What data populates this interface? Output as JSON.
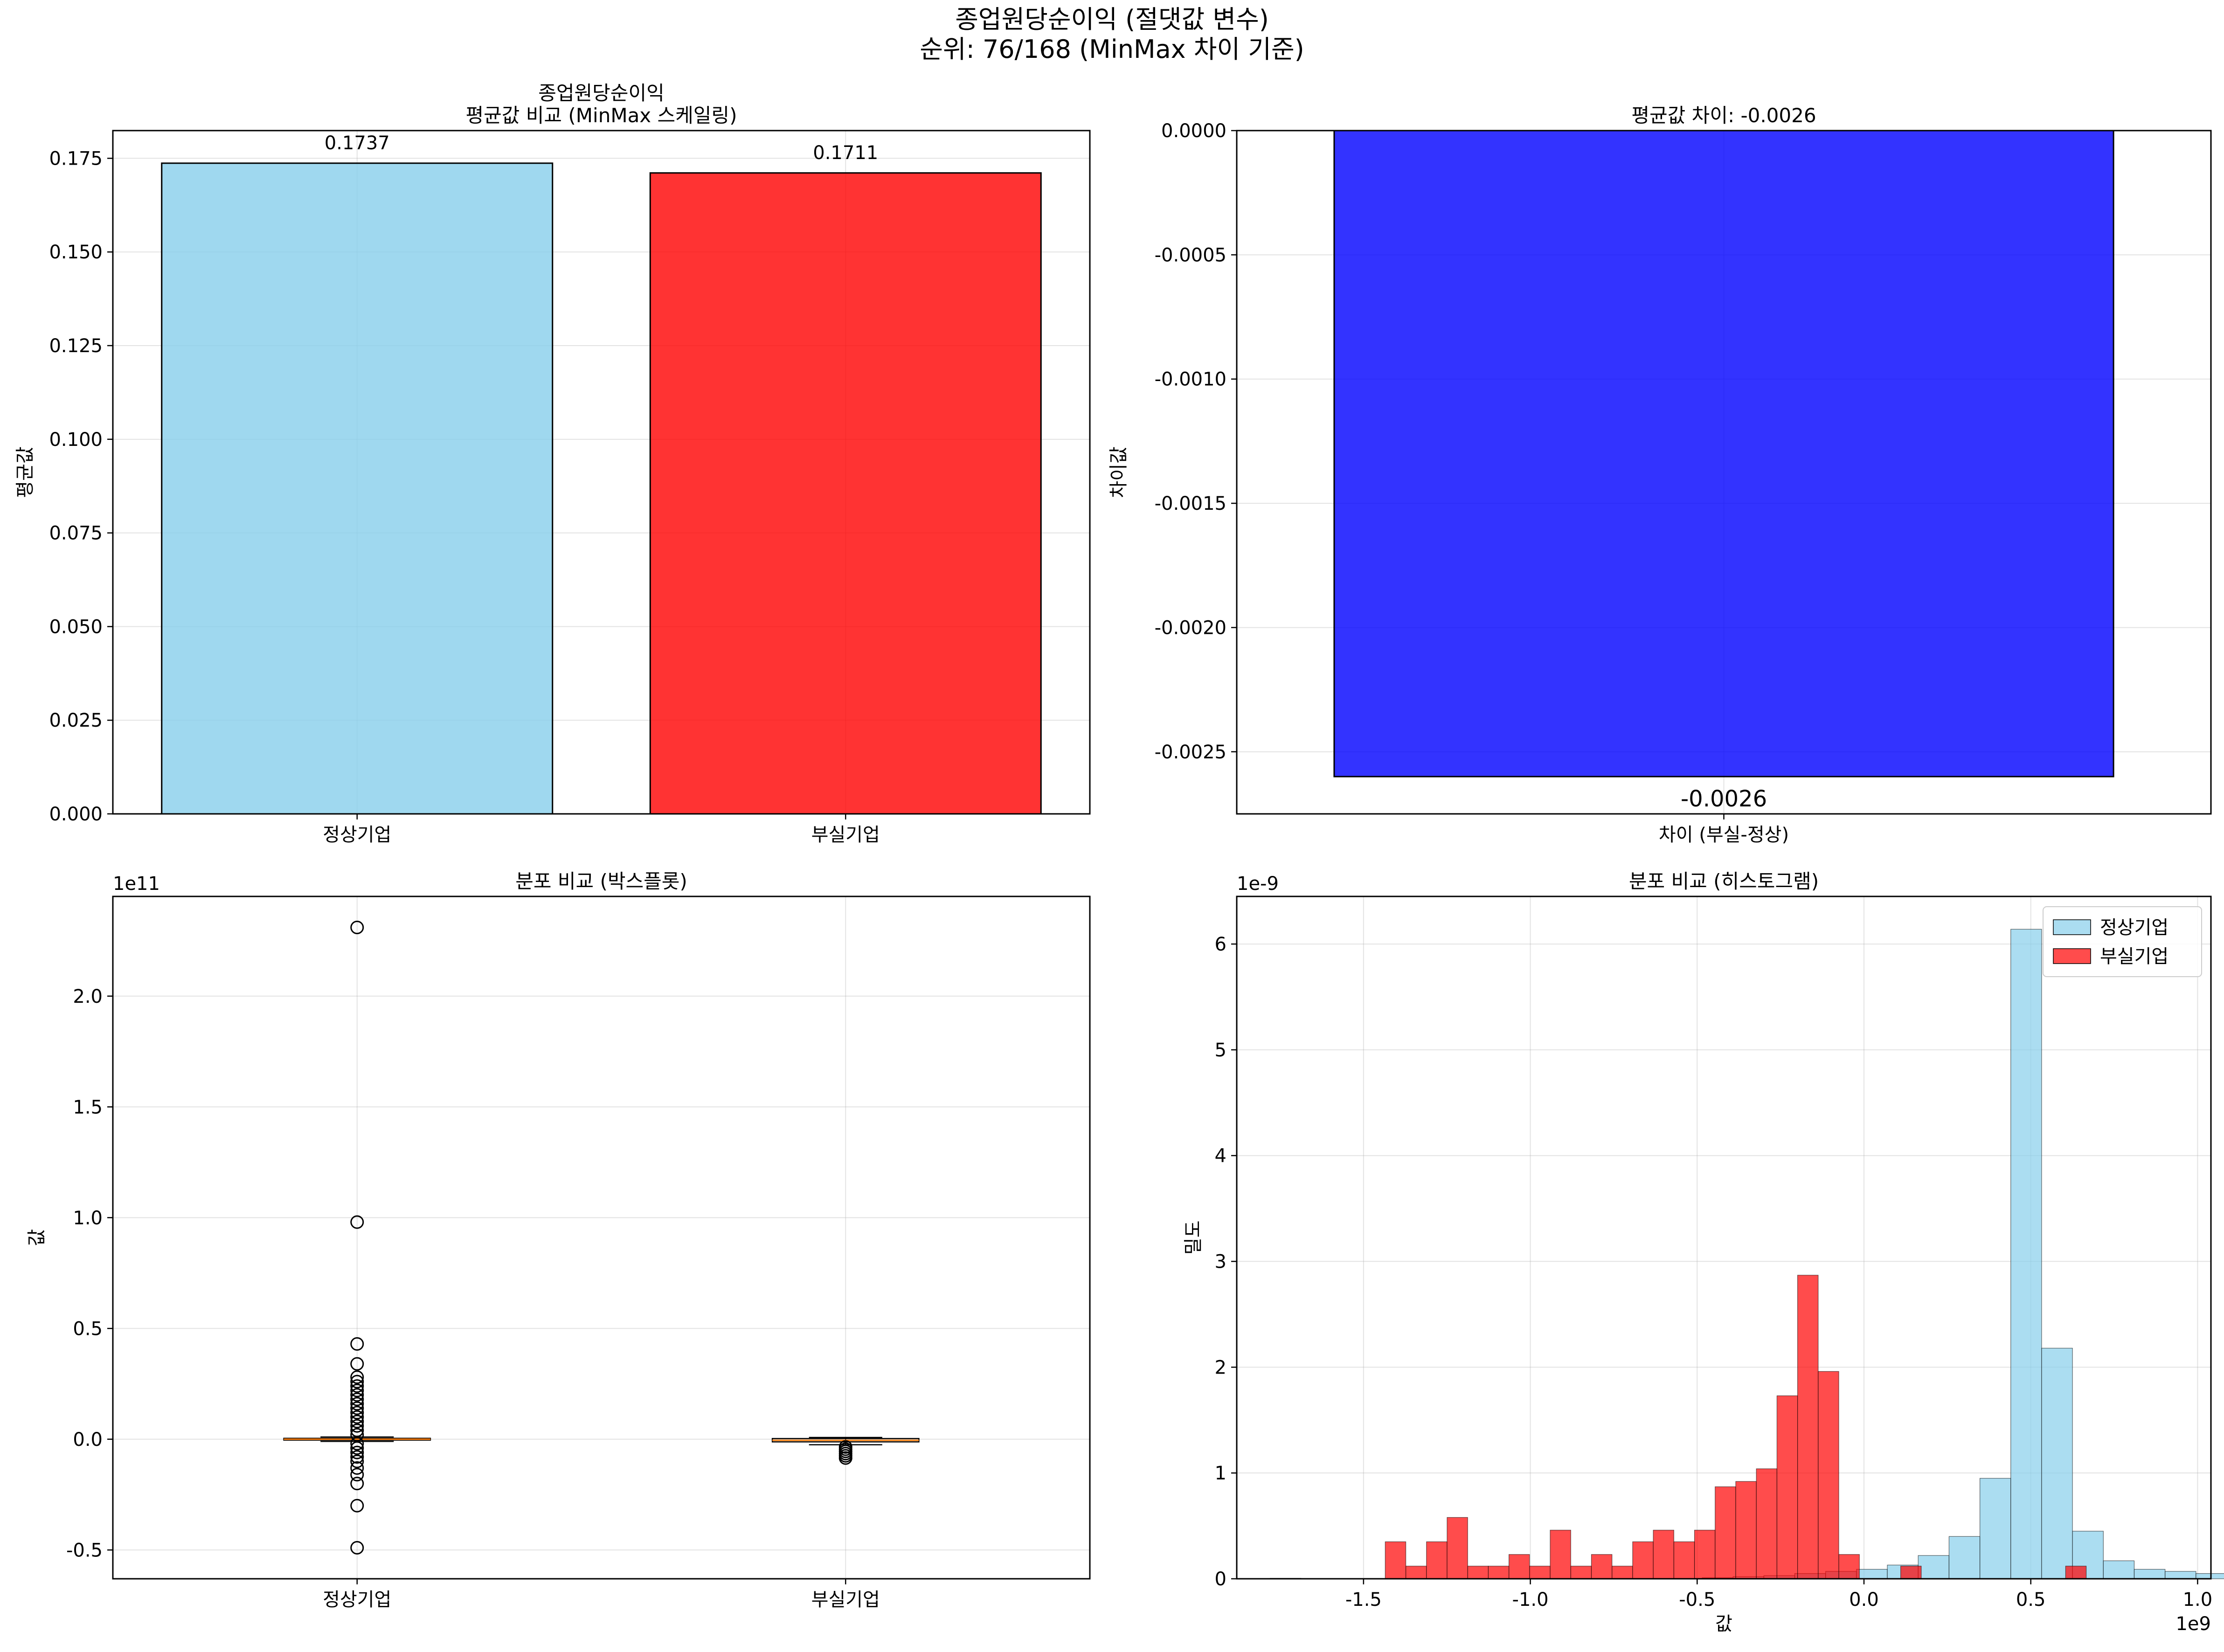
{
  "suptitle": [
    "종업원당순이익 (절댓값 변수)",
    "순위: 76/168 (MinMax 차이 기준)"
  ],
  "colors": {
    "normal": "#87ceeb",
    "bankrupt": "#ff0000",
    "diff": "#0000ff",
    "median": "#ff7f0e",
    "grid": "#b0b0b0"
  },
  "chart_data": [
    {
      "type": "bar",
      "title": [
        "종업원당순이익",
        "평균값 비교 (MinMax 스케일링)"
      ],
      "categories": [
        "정상기업",
        "부실기업"
      ],
      "values": [
        0.1737,
        0.1711
      ],
      "value_labels": [
        "0.1737",
        "0.1711"
      ],
      "xlabel": "",
      "ylabel": "평균값",
      "ylim": [
        0,
        0.1824
      ],
      "yticks": [
        0.0,
        0.025,
        0.05,
        0.075,
        0.1,
        0.125,
        0.15,
        0.175
      ],
      "ytick_labels": [
        "0.000",
        "0.025",
        "0.050",
        "0.075",
        "0.100",
        "0.125",
        "0.150",
        "0.175"
      ],
      "grid": true
    },
    {
      "type": "bar",
      "title": [
        "평균값 차이: -0.0026"
      ],
      "categories": [
        "차이 (부실-정상)"
      ],
      "values": [
        -0.0026
      ],
      "value_labels": [
        "-0.0026"
      ],
      "xlabel": "",
      "ylabel": "차이값",
      "ylim": [
        -0.00275,
        0
      ],
      "yticks": [
        0.0,
        -0.0005,
        -0.001,
        -0.0015,
        -0.002,
        -0.0025
      ],
      "ytick_labels": [
        "0.0000",
        "-0.0005",
        "-0.0010",
        "-0.0015",
        "-0.0020",
        "-0.0025"
      ],
      "grid": true
    },
    {
      "type": "box",
      "title": [
        "분포 비교 (박스플롯)"
      ],
      "categories": [
        "정상기업",
        "부실기업"
      ],
      "ylabel": "값",
      "offset_label": "1e11",
      "ylim": [
        -0.63,
        2.45
      ],
      "yticks": [
        -0.5,
        0.0,
        0.5,
        1.0,
        1.5,
        2.0
      ],
      "ytick_labels": [
        "-0.5",
        "0.0",
        "0.5",
        "1.0",
        "1.5",
        "2.0"
      ],
      "boxes": [
        {
          "name": "정상기업",
          "q1": -0.004,
          "median": 0.0,
          "q3": 0.004,
          "whisker_low": -0.01,
          "whisker_high": 0.01,
          "outliers": [
            2.31,
            0.98,
            0.43,
            0.34,
            0.28,
            0.26,
            0.24,
            0.22,
            0.2,
            0.18,
            0.16,
            0.14,
            0.12,
            0.1,
            0.08,
            0.06,
            0.04,
            0.02,
            -0.02,
            -0.04,
            -0.06,
            -0.08,
            -0.1,
            -0.13,
            -0.16,
            -0.2,
            -0.3,
            -0.49
          ]
        },
        {
          "name": "부실기업",
          "q1": -0.012,
          "median": -0.005,
          "q3": 0.003,
          "whisker_low": -0.025,
          "whisker_high": 0.008,
          "outliers": [
            -0.035,
            -0.045,
            -0.055,
            -0.065,
            -0.075,
            -0.085
          ]
        }
      ],
      "grid": true
    },
    {
      "type": "histogram",
      "title": [
        "분포 비교 (히스토그램)"
      ],
      "xlabel": "값",
      "ylabel": "밀도",
      "x_offset_label": "1e9",
      "y_offset_label": "1e-9",
      "xlim": [
        -1.88,
        1.04
      ],
      "ylim": [
        0,
        6.45
      ],
      "xticks": [
        -1.5,
        -1.0,
        -0.5,
        0.0,
        0.5,
        1.0
      ],
      "xtick_labels": [
        "-1.5",
        "-1.0",
        "-0.5",
        "0.0",
        "0.5",
        "1.0"
      ],
      "yticks": [
        0,
        1,
        2,
        3,
        4,
        5,
        6
      ],
      "ytick_labels": [
        "0",
        "1",
        "2",
        "3",
        "4",
        "5",
        "6"
      ],
      "legend": {
        "position": "top-right",
        "entries": [
          "정상기업",
          "부실기업"
        ]
      },
      "series": [
        {
          "name": "정상기업",
          "bin_start": -1.78,
          "bin_width": 0.0925,
          "values": [
            0.005,
            0,
            0,
            0,
            0,
            0,
            0,
            0,
            0,
            0,
            0,
            0,
            0,
            0,
            0.01,
            0.02,
            0.03,
            0.05,
            0.07,
            0.09,
            0.13,
            0.22,
            0.4,
            0.95,
            6.14,
            2.18,
            0.45,
            0.17,
            0.09,
            0.07,
            0.05,
            0.03,
            0.02,
            0.01,
            0.01,
            0.01,
            0.005,
            0.005
          ]
        },
        {
          "name": "부실기업",
          "bin_start": -1.435,
          "bin_width": 0.0618,
          "values": [
            0.35,
            0.12,
            0.35,
            0.58,
            0.12,
            0.12,
            0.23,
            0.12,
            0.46,
            0.12,
            0.23,
            0.12,
            0.35,
            0.46,
            0.35,
            0.46,
            0.87,
            0.92,
            1.04,
            1.73,
            2.87,
            1.96,
            0.23,
            0,
            0,
            0.12,
            0,
            0,
            0,
            0,
            0,
            0,
            0,
            0.12
          ]
        }
      ],
      "grid": true
    }
  ]
}
